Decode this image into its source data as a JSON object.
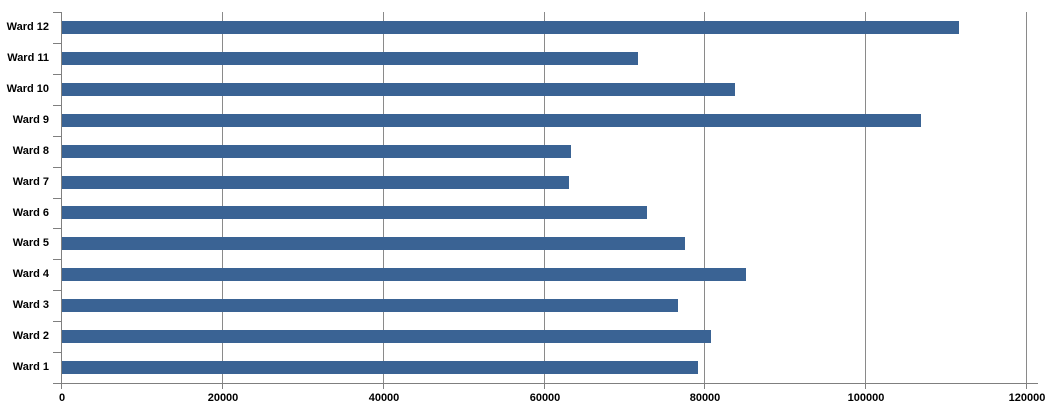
{
  "chart": {
    "background_color": "#FFFFFF",
    "bar_color": "#3A6394",
    "gridline_color": "#8A8A8A",
    "axis_color": "#7F7F7F",
    "label_color": "#000000"
  },
  "chart_data": {
    "type": "bar",
    "orientation": "horizontal",
    "title": "",
    "xlabel": "",
    "ylabel": "",
    "legend_position": "none",
    "grid": "vertical gridlines at each x tick",
    "category_order": "top-to-bottom",
    "categories": [
      "Ward 12",
      "Ward 11",
      "Ward 10",
      "Ward 9",
      "Ward 8",
      "Ward 7",
      "Ward 6",
      "Ward 5",
      "Ward 4",
      "Ward 3",
      "Ward 2",
      "Ward 1"
    ],
    "values": [
      111500,
      71600,
      83700,
      106800,
      63300,
      63000,
      72700,
      77500,
      85100,
      76600,
      80700,
      79100
    ],
    "xlim": [
      0,
      120000
    ],
    "x_ticks": [
      0,
      20000,
      40000,
      60000,
      80000,
      100000,
      120000
    ],
    "x_tick_labels": [
      "0",
      "20000",
      "40000",
      "60000",
      "80000",
      "100000",
      "120000"
    ]
  }
}
